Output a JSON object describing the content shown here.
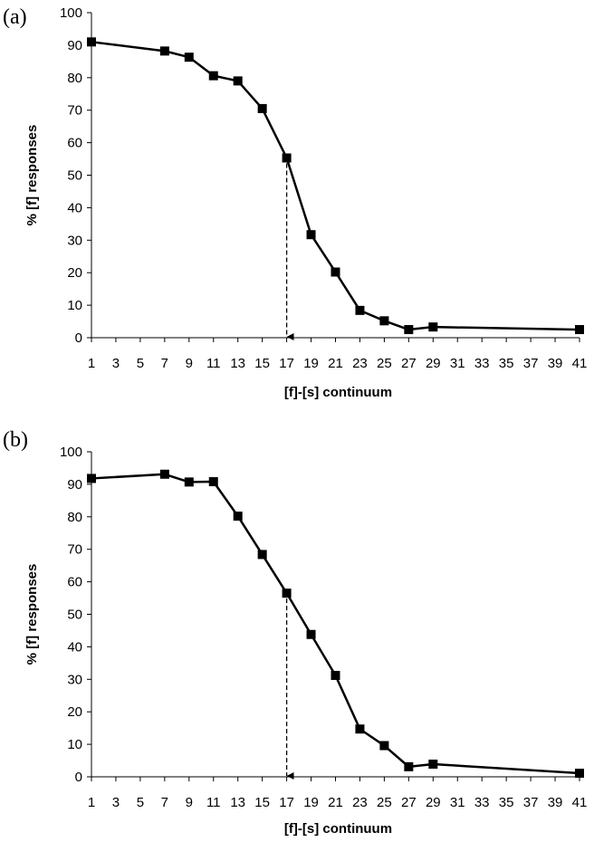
{
  "chart_data": [
    {
      "panel": "(a)",
      "type": "line",
      "xlabel": "[f]-[s] continuum",
      "ylabel": "% [f] responses",
      "ylim": [
        0,
        100
      ],
      "yticks": [
        "0",
        "10",
        "20",
        "30",
        "40",
        "50",
        "60",
        "70",
        "80",
        "90",
        "100"
      ],
      "xticks": [
        "1",
        "3",
        "5",
        "7",
        "9",
        "11",
        "13",
        "15",
        "17",
        "19",
        "21",
        "23",
        "25",
        "27",
        "29",
        "31",
        "33",
        "35",
        "37",
        "39",
        "41"
      ],
      "x": [
        1,
        7,
        9,
        11,
        13,
        15,
        17,
        19,
        21,
        23,
        25,
        27,
        29,
        41
      ],
      "y": [
        91,
        88.2,
        86.3,
        80.6,
        79,
        70.5,
        55.3,
        31.7,
        20.2,
        8.4,
        5.2,
        2.5,
        3.3,
        2.5
      ],
      "boundary_x": 17,
      "boundary_y": 55.3
    },
    {
      "panel": "(b)",
      "type": "line",
      "xlabel": "[f]-[s] continuum",
      "ylabel": "% [f] responses",
      "ylim": [
        0,
        100
      ],
      "yticks": [
        "0",
        "10",
        "20",
        "30",
        "40",
        "50",
        "60",
        "70",
        "80",
        "90",
        "100"
      ],
      "xticks": [
        "1",
        "3",
        "5",
        "7",
        "9",
        "11",
        "13",
        "15",
        "17",
        "19",
        "21",
        "23",
        "25",
        "27",
        "29",
        "31",
        "33",
        "35",
        "37",
        "39",
        "41"
      ],
      "x": [
        1,
        7,
        9,
        11,
        13,
        15,
        17,
        19,
        21,
        23,
        25,
        27,
        29,
        41
      ],
      "y": [
        91.8,
        93.1,
        90.7,
        90.8,
        80.2,
        68.4,
        56.5,
        43.8,
        31.2,
        14.7,
        9.6,
        3.1,
        3.9,
        1.1
      ],
      "boundary_x": 17,
      "boundary_y": 56.5
    }
  ],
  "colors": {
    "line": "#000000",
    "marker": "#000000"
  }
}
